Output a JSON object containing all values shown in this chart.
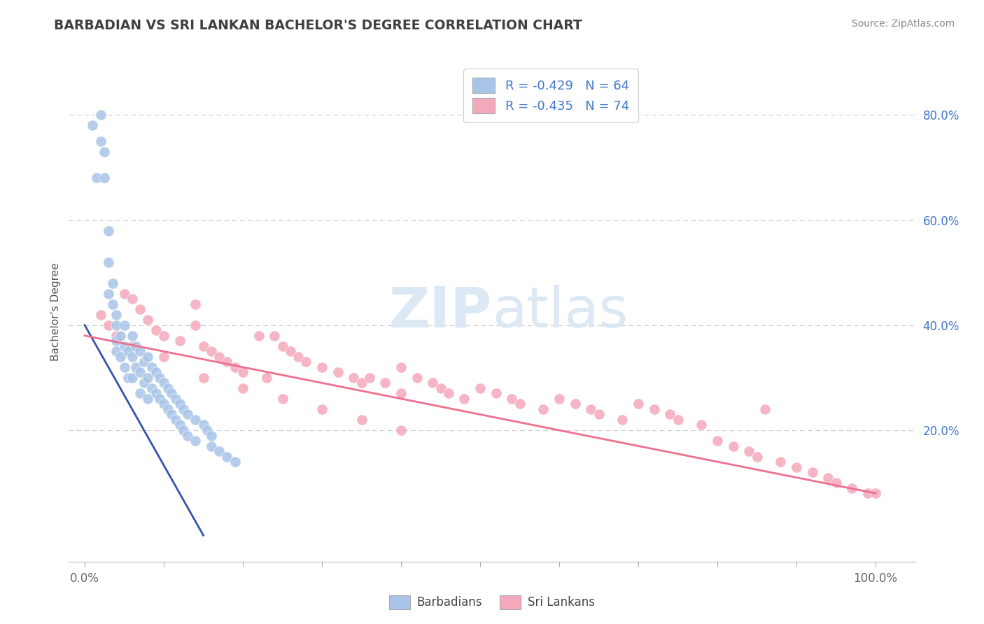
{
  "title": "BARBADIAN VS SRI LANKAN BACHELOR'S DEGREE CORRELATION CHART",
  "source": "Source: ZipAtlas.com",
  "ylabel": "Bachelor's Degree",
  "legend_label1": "Barbadians",
  "legend_label2": "Sri Lankans",
  "r1": -0.429,
  "n1": 64,
  "r2": -0.435,
  "n2": 74,
  "color_blue": "#a8c4e8",
  "color_pink": "#f4a8bb",
  "line_color_blue": "#3355aa",
  "line_color_pink": "#ee7090",
  "watermark_color": "#dde8f5",
  "grid_color": "#cccccc",
  "title_color": "#404040",
  "source_color": "#888888",
  "tick_color": "#666666",
  "ylabel_color": "#555555",
  "legend_text_color": "#4477cc",
  "right_tick_color": "#4477cc",
  "barbadians_x": [
    1.0,
    1.5,
    2.0,
    2.0,
    2.5,
    2.5,
    3.0,
    3.0,
    3.0,
    3.5,
    3.5,
    4.0,
    4.0,
    4.0,
    4.0,
    4.5,
    4.5,
    5.0,
    5.0,
    5.0,
    5.5,
    5.5,
    6.0,
    6.0,
    6.0,
    6.5,
    6.5,
    7.0,
    7.0,
    7.0,
    7.5,
    7.5,
    8.0,
    8.0,
    8.0,
    8.5,
    8.5,
    9.0,
    9.0,
    9.5,
    9.5,
    10.0,
    10.0,
    10.5,
    10.5,
    11.0,
    11.0,
    11.5,
    11.5,
    12.0,
    12.0,
    12.5,
    12.5,
    13.0,
    13.0,
    14.0,
    14.0,
    15.0,
    15.5,
    16.0,
    16.0,
    17.0,
    18.0,
    19.0
  ],
  "barbadians_y": [
    78.0,
    68.0,
    80.0,
    75.0,
    73.0,
    68.0,
    58.0,
    52.0,
    46.0,
    48.0,
    44.0,
    42.0,
    40.0,
    37.0,
    35.0,
    38.0,
    34.0,
    40.0,
    36.0,
    32.0,
    35.0,
    30.0,
    38.0,
    34.0,
    30.0,
    36.0,
    32.0,
    35.0,
    31.0,
    27.0,
    33.0,
    29.0,
    34.0,
    30.0,
    26.0,
    32.0,
    28.0,
    31.0,
    27.0,
    30.0,
    26.0,
    29.0,
    25.0,
    28.0,
    24.0,
    27.0,
    23.0,
    26.0,
    22.0,
    25.0,
    21.0,
    24.0,
    20.0,
    23.0,
    19.0,
    22.0,
    18.0,
    21.0,
    20.0,
    19.0,
    17.0,
    16.0,
    15.0,
    14.0
  ],
  "srilankans_x": [
    2.0,
    3.0,
    5.0,
    6.0,
    7.0,
    8.0,
    9.0,
    10.0,
    12.0,
    14.0,
    14.0,
    15.0,
    16.0,
    17.0,
    18.0,
    19.0,
    20.0,
    22.0,
    23.0,
    24.0,
    25.0,
    26.0,
    27.0,
    28.0,
    30.0,
    32.0,
    34.0,
    35.0,
    36.0,
    38.0,
    40.0,
    40.0,
    42.0,
    44.0,
    45.0,
    46.0,
    48.0,
    50.0,
    52.0,
    54.0,
    55.0,
    58.0,
    60.0,
    62.0,
    64.0,
    65.0,
    68.0,
    70.0,
    72.0,
    74.0,
    75.0,
    78.0,
    80.0,
    82.0,
    84.0,
    85.0,
    86.0,
    88.0,
    90.0,
    92.0,
    94.0,
    95.0,
    97.0,
    99.0,
    100.0,
    4.0,
    6.0,
    10.0,
    15.0,
    20.0,
    25.0,
    30.0,
    35.0,
    40.0
  ],
  "srilankans_y": [
    42.0,
    40.0,
    46.0,
    45.0,
    43.0,
    41.0,
    39.0,
    38.0,
    37.0,
    44.0,
    40.0,
    36.0,
    35.0,
    34.0,
    33.0,
    32.0,
    31.0,
    38.0,
    30.0,
    38.0,
    36.0,
    35.0,
    34.0,
    33.0,
    32.0,
    31.0,
    30.0,
    29.0,
    30.0,
    29.0,
    32.0,
    27.0,
    30.0,
    29.0,
    28.0,
    27.0,
    26.0,
    28.0,
    27.0,
    26.0,
    25.0,
    24.0,
    26.0,
    25.0,
    24.0,
    23.0,
    22.0,
    25.0,
    24.0,
    23.0,
    22.0,
    21.0,
    18.0,
    17.0,
    16.0,
    15.0,
    24.0,
    14.0,
    13.0,
    12.0,
    11.0,
    10.0,
    9.0,
    8.0,
    8.0,
    38.0,
    36.0,
    34.0,
    30.0,
    28.0,
    26.0,
    24.0,
    22.0,
    20.0
  ],
  "blue_line_x": [
    0,
    15
  ],
  "blue_line_y": [
    40,
    0
  ],
  "pink_line_x": [
    0,
    100
  ],
  "pink_line_y": [
    38,
    8
  ],
  "xlim": [
    -2,
    105
  ],
  "ylim": [
    -5,
    90
  ],
  "yticks": [
    20,
    40,
    60,
    80
  ],
  "ytick_labels": [
    "20.0%",
    "40.0%",
    "60.0%",
    "80.0%"
  ],
  "xtick_positions": [
    0,
    10,
    20,
    30,
    40,
    50,
    60,
    70,
    80,
    90,
    100
  ],
  "figsize": [
    14.06,
    8.92
  ],
  "dpi": 100
}
